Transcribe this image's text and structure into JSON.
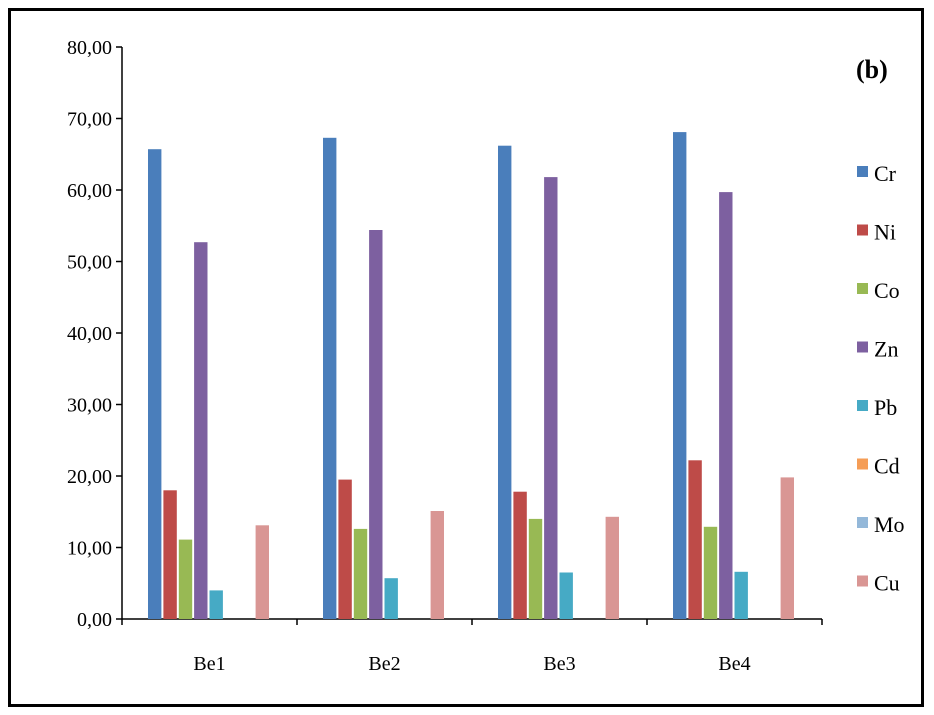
{
  "panel_label": "(b)",
  "chart_data": {
    "type": "bar",
    "categories": [
      "Be1",
      "Be2",
      "Be3",
      "Be4"
    ],
    "series": [
      {
        "name": "Cr",
        "color": "#4A7EBB",
        "values": [
          65.7,
          67.3,
          66.2,
          68.1
        ]
      },
      {
        "name": "Ni",
        "color": "#BE4B48",
        "values": [
          18.0,
          19.5,
          17.8,
          22.2
        ]
      },
      {
        "name": "Co",
        "color": "#98B954",
        "values": [
          11.1,
          12.6,
          14.0,
          12.9
        ]
      },
      {
        "name": "Zn",
        "color": "#7D60A0",
        "values": [
          52.7,
          54.4,
          61.8,
          59.7
        ]
      },
      {
        "name": "Pb",
        "color": "#46AAC5",
        "values": [
          4.0,
          5.7,
          6.5,
          6.6
        ]
      },
      {
        "name": "Cd",
        "color": "#F59D56",
        "values": [
          0,
          0,
          0,
          0
        ]
      },
      {
        "name": "Mo",
        "color": "#94B8D9",
        "values": [
          0,
          0,
          0,
          0
        ]
      },
      {
        "name": "Cu",
        "color": "#D99694",
        "values": [
          13.1,
          15.1,
          14.3,
          19.8
        ]
      }
    ],
    "yticks": [
      "0,00",
      "10,00",
      "20,00",
      "30,00",
      "40,00",
      "50,00",
      "60,00",
      "70,00",
      "80,00"
    ],
    "ylim": [
      0,
      80
    ],
    "legend_position": "right",
    "grid": false
  }
}
